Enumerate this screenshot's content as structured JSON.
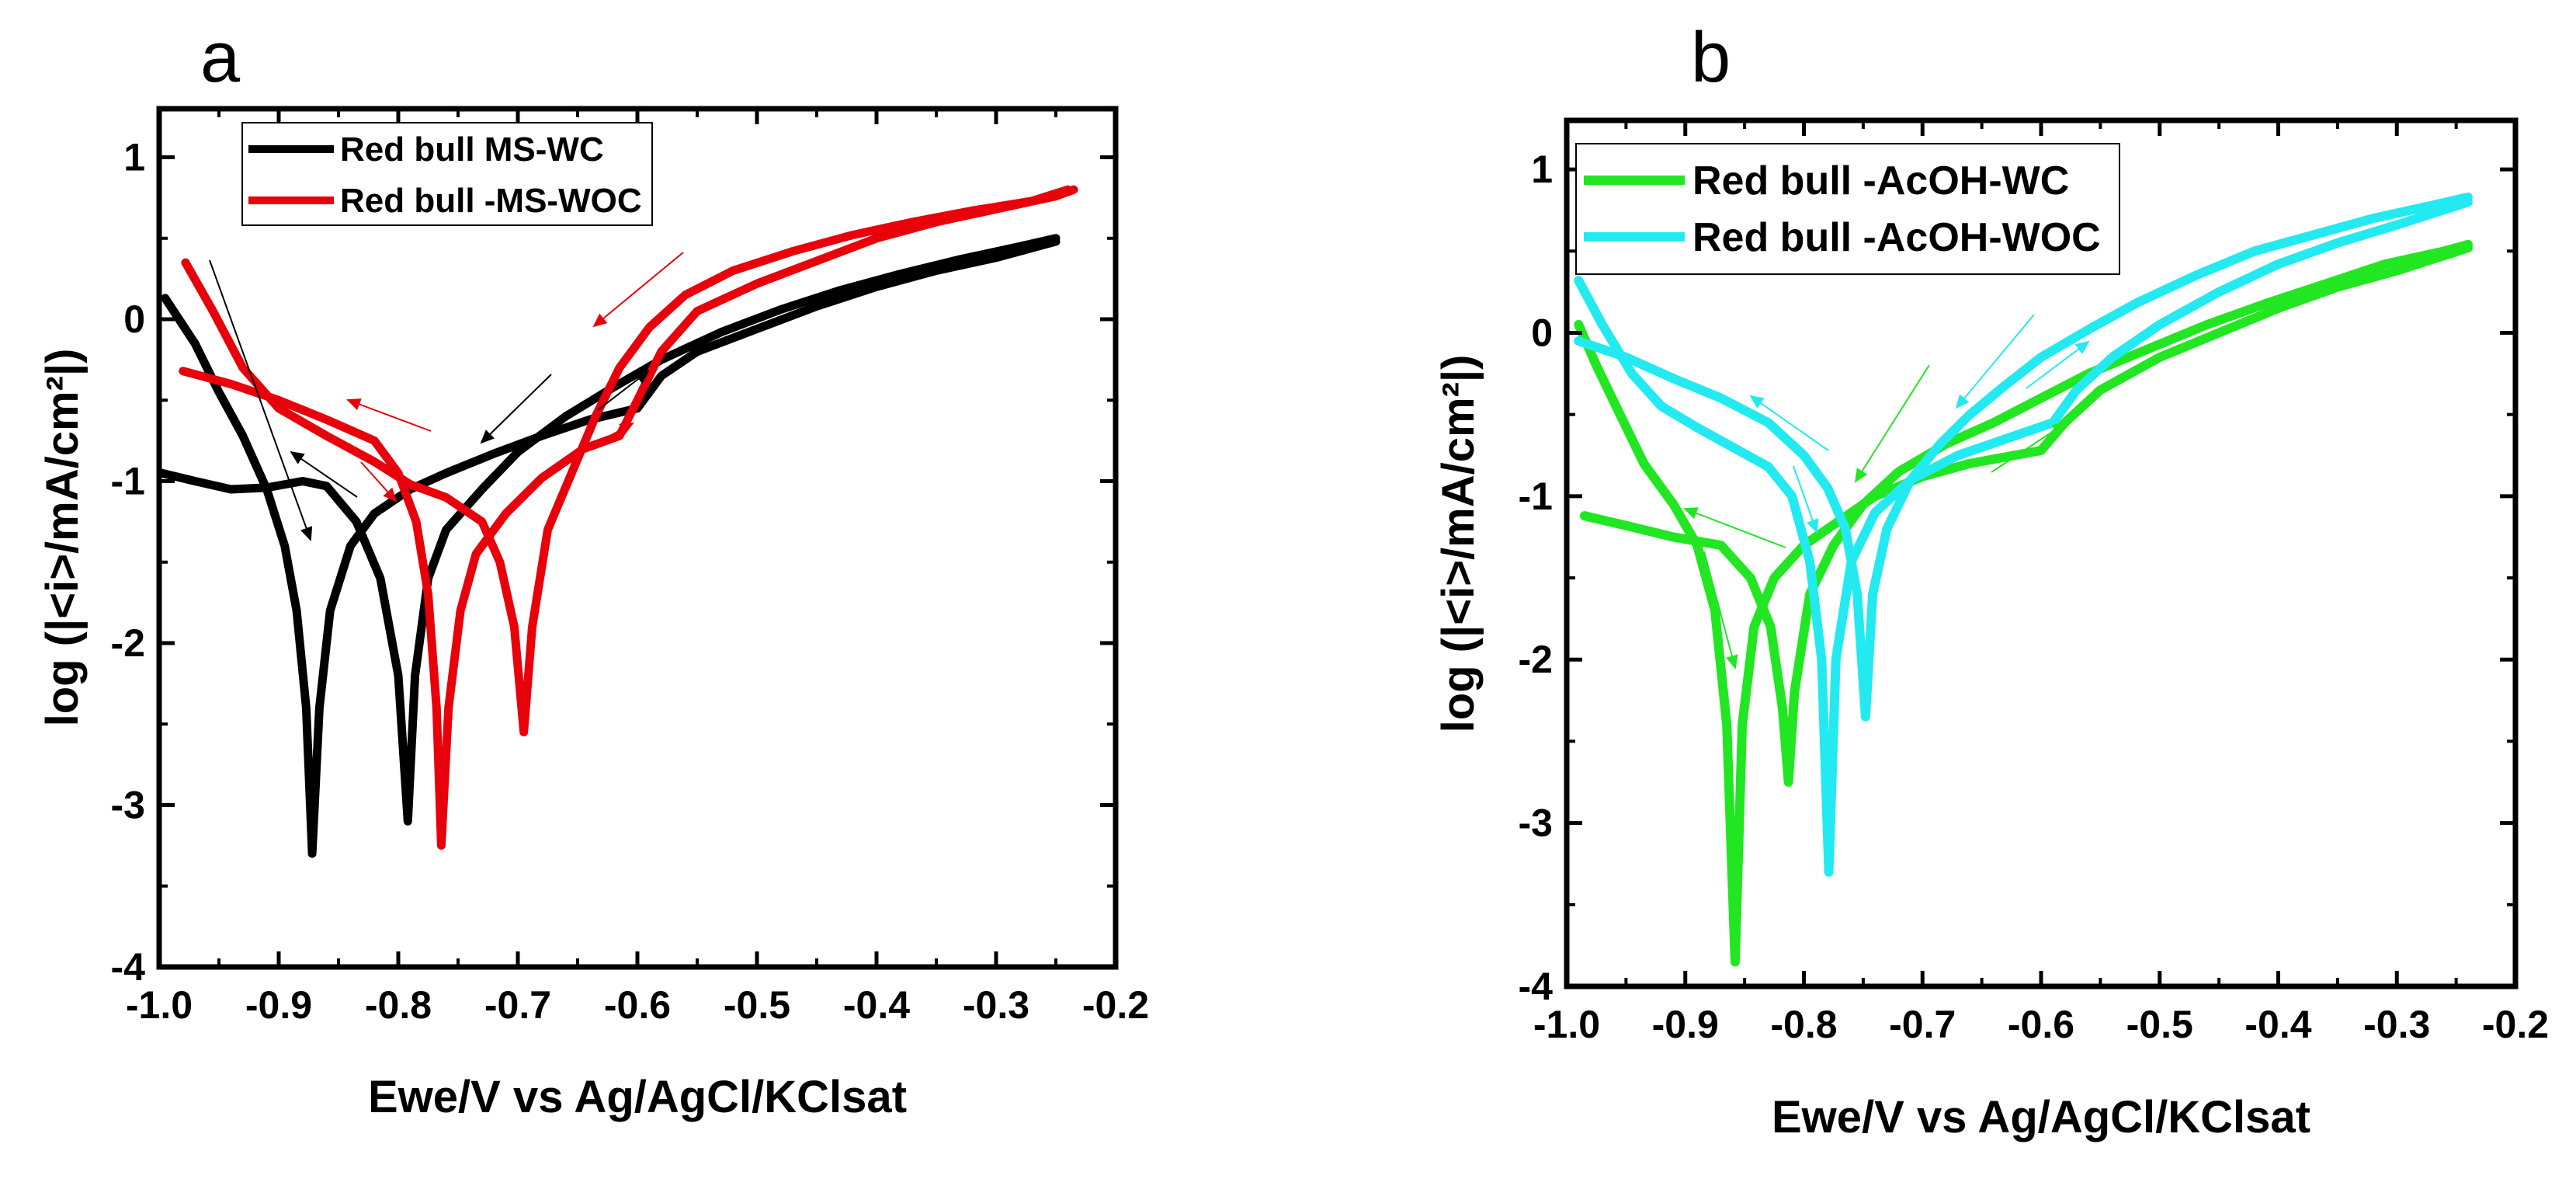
{
  "chart_data": [
    {
      "panel": "a",
      "type": "line",
      "xlabel": "Ewe/V vs Ag/AgCl/KClsat",
      "ylabel": "log (|<i>/mA/cm²|)",
      "xlim": [
        -1.0,
        -0.2
      ],
      "ylim": [
        -4,
        1.3
      ],
      "xticks": [
        -1.0,
        -0.9,
        -0.8,
        -0.7,
        -0.6,
        -0.5,
        -0.4,
        -0.3,
        -0.2
      ],
      "xtick_labels": [
        "-1.0",
        "-0.9",
        "-0.8",
        "-0.7",
        "-0.6",
        "-0.5",
        "-0.4",
        "-0.3",
        "-0.2"
      ],
      "yticks": [
        1,
        0,
        -1,
        -2,
        -3,
        -4
      ],
      "ytick_labels": [
        "1",
        "0",
        "-1",
        "-2",
        "-3",
        "-4"
      ],
      "legend": [
        "Red bull MS-WC",
        "Red bull -MS-WOC"
      ],
      "series": [
        {
          "name": "Red bull MS-WC",
          "color": "#000000",
          "curves": [
            [
              [
                -0.995,
                0.13
              ],
              [
                -0.97,
                -0.15
              ],
              [
                -0.95,
                -0.45
              ],
              [
                -0.93,
                -0.72
              ],
              [
                -0.91,
                -1.05
              ],
              [
                -0.895,
                -1.4
              ],
              [
                -0.885,
                -1.8
              ],
              [
                -0.877,
                -2.4
              ],
              [
                -0.872,
                -3.3
              ],
              [
                -0.866,
                -2.4
              ],
              [
                -0.857,
                -1.8
              ],
              [
                -0.84,
                -1.4
              ],
              [
                -0.82,
                -1.2
              ],
              [
                -0.79,
                -1.05
              ],
              [
                -0.76,
                -0.95
              ],
              [
                -0.72,
                -0.83
              ],
              [
                -0.68,
                -0.72
              ],
              [
                -0.64,
                -0.62
              ],
              [
                -0.6,
                -0.55
              ],
              [
                -0.58,
                -0.35
              ],
              [
                -0.55,
                -0.2
              ],
              [
                -0.5,
                -0.06
              ],
              [
                -0.45,
                0.08
              ],
              [
                -0.4,
                0.2
              ],
              [
                -0.35,
                0.3
              ],
              [
                -0.3,
                0.38
              ],
              [
                -0.25,
                0.48
              ]
            ],
            [
              [
                -0.998,
                -0.95
              ],
              [
                -0.97,
                -1.0
              ],
              [
                -0.94,
                -1.05
              ],
              [
                -0.91,
                -1.04
              ],
              [
                -0.88,
                -1.0
              ],
              [
                -0.86,
                -1.03
              ],
              [
                -0.835,
                -1.25
              ],
              [
                -0.815,
                -1.6
              ],
              [
                -0.8,
                -2.2
              ],
              [
                -0.792,
                -3.1
              ],
              [
                -0.786,
                -2.2
              ],
              [
                -0.775,
                -1.6
              ],
              [
                -0.76,
                -1.3
              ],
              [
                -0.73,
                -1.05
              ],
              [
                -0.7,
                -0.82
              ],
              [
                -0.66,
                -0.6
              ],
              [
                -0.62,
                -0.42
              ],
              [
                -0.58,
                -0.25
              ],
              [
                -0.53,
                -0.08
              ],
              [
                -0.48,
                0.06
              ],
              [
                -0.43,
                0.18
              ],
              [
                -0.38,
                0.28
              ],
              [
                -0.33,
                0.37
              ],
              [
                -0.28,
                0.45
              ],
              [
                -0.25,
                0.5
              ]
            ]
          ]
        },
        {
          "name": "Red bull -MS-WOC",
          "color": "#e8000b",
          "curves": [
            [
              [
                -0.98,
                -0.32
              ],
              [
                -0.94,
                -0.4
              ],
              [
                -0.9,
                -0.5
              ],
              [
                -0.86,
                -0.62
              ],
              [
                -0.82,
                -0.75
              ],
              [
                -0.8,
                -0.95
              ],
              [
                -0.785,
                -1.25
              ],
              [
                -0.775,
                -1.7
              ],
              [
                -0.768,
                -2.4
              ],
              [
                -0.764,
                -3.25
              ],
              [
                -0.758,
                -2.4
              ],
              [
                -0.748,
                -1.8
              ],
              [
                -0.735,
                -1.45
              ],
              [
                -0.71,
                -1.2
              ],
              [
                -0.68,
                -0.98
              ],
              [
                -0.645,
                -0.8
              ],
              [
                -0.615,
                -0.72
              ],
              [
                -0.6,
                -0.5
              ],
              [
                -0.58,
                -0.2
              ],
              [
                -0.55,
                0.05
              ],
              [
                -0.5,
                0.22
              ],
              [
                -0.45,
                0.36
              ],
              [
                -0.4,
                0.5
              ],
              [
                -0.35,
                0.6
              ],
              [
                -0.3,
                0.68
              ],
              [
                -0.25,
                0.76
              ],
              [
                -0.235,
                0.8
              ]
            ],
            [
              [
                -0.978,
                0.35
              ],
              [
                -0.955,
                0.05
              ],
              [
                -0.93,
                -0.3
              ],
              [
                -0.9,
                -0.55
              ],
              [
                -0.86,
                -0.72
              ],
              [
                -0.82,
                -0.88
              ],
              [
                -0.79,
                -1.02
              ],
              [
                -0.76,
                -1.1
              ],
              [
                -0.73,
                -1.25
              ],
              [
                -0.715,
                -1.5
              ],
              [
                -0.703,
                -1.9
              ],
              [
                -0.695,
                -2.55
              ],
              [
                -0.688,
                -1.9
              ],
              [
                -0.675,
                -1.3
              ],
              [
                -0.655,
                -0.95
              ],
              [
                -0.635,
                -0.6
              ],
              [
                -0.615,
                -0.3
              ],
              [
                -0.59,
                -0.05
              ],
              [
                -0.56,
                0.15
              ],
              [
                -0.52,
                0.3
              ],
              [
                -0.47,
                0.42
              ],
              [
                -0.42,
                0.52
              ],
              [
                -0.37,
                0.6
              ],
              [
                -0.32,
                0.67
              ],
              [
                -0.27,
                0.73
              ],
              [
                -0.24,
                0.8
              ]
            ]
          ]
        }
      ]
    },
    {
      "panel": "b",
      "type": "line",
      "xlabel": "Ewe/V vs Ag/AgCl/KClsat",
      "ylabel": "log (|<i>/mA/cm²|)",
      "xlim": [
        -1.0,
        -0.2
      ],
      "ylim": [
        -4,
        1.3
      ],
      "xticks": [
        -1.0,
        -0.9,
        -0.8,
        -0.7,
        -0.6,
        -0.5,
        -0.4,
        -0.3,
        -0.2
      ],
      "xtick_labels": [
        "-1.0",
        "-0.9",
        "-0.8",
        "-0.7",
        "-0.6",
        "-0.5",
        "-0.4",
        "-0.3",
        "-0.2"
      ],
      "yticks": [
        1,
        0,
        -1,
        -2,
        -3,
        -4
      ],
      "ytick_labels": [
        "1",
        "0",
        "-1",
        "-2",
        "-3",
        "-4"
      ],
      "legend": [
        "Red bull -AcOH-WC",
        "Red bull -AcOH-WOC"
      ],
      "series": [
        {
          "name": "Red bull -AcOH-WC",
          "color": "#22e622",
          "curves": [
            [
              [
                -0.99,
                0.05
              ],
              [
                -0.975,
                -0.2
              ],
              [
                -0.955,
                -0.5
              ],
              [
                -0.935,
                -0.8
              ],
              [
                -0.91,
                -1.05
              ],
              [
                -0.89,
                -1.3
              ],
              [
                -0.875,
                -1.7
              ],
              [
                -0.865,
                -2.4
              ],
              [
                -0.858,
                -3.85
              ],
              [
                -0.852,
                -2.4
              ],
              [
                -0.842,
                -1.8
              ],
              [
                -0.825,
                -1.5
              ],
              [
                -0.8,
                -1.3
              ],
              [
                -0.77,
                -1.15
              ],
              [
                -0.74,
                -1.0
              ],
              [
                -0.7,
                -0.88
              ],
              [
                -0.66,
                -0.8
              ],
              [
                -0.6,
                -0.72
              ],
              [
                -0.58,
                -0.55
              ],
              [
                -0.55,
                -0.35
              ],
              [
                -0.5,
                -0.15
              ],
              [
                -0.45,
                0.0
              ],
              [
                -0.4,
                0.15
              ],
              [
                -0.35,
                0.28
              ],
              [
                -0.3,
                0.38
              ],
              [
                -0.24,
                0.52
              ]
            ],
            [
              [
                -0.985,
                -1.12
              ],
              [
                -0.95,
                -1.18
              ],
              [
                -0.91,
                -1.25
              ],
              [
                -0.87,
                -1.3
              ],
              [
                -0.845,
                -1.5
              ],
              [
                -0.828,
                -1.8
              ],
              [
                -0.818,
                -2.3
              ],
              [
                -0.813,
                -2.75
              ],
              [
                -0.808,
                -2.2
              ],
              [
                -0.795,
                -1.6
              ],
              [
                -0.775,
                -1.3
              ],
              [
                -0.75,
                -1.05
              ],
              [
                -0.72,
                -0.85
              ],
              [
                -0.68,
                -0.68
              ],
              [
                -0.64,
                -0.55
              ],
              [
                -0.6,
                -0.4
              ],
              [
                -0.56,
                -0.25
              ],
              [
                -0.51,
                -0.1
              ],
              [
                -0.46,
                0.05
              ],
              [
                -0.41,
                0.18
              ],
              [
                -0.36,
                0.3
              ],
              [
                -0.31,
                0.42
              ],
              [
                -0.26,
                0.5
              ],
              [
                -0.24,
                0.54
              ]
            ]
          ]
        },
        {
          "name": "Red bull -AcOH-WOC",
          "color": "#22eaf0",
          "curves": [
            [
              [
                -0.99,
                0.32
              ],
              [
                -0.97,
                0.05
              ],
              [
                -0.945,
                -0.25
              ],
              [
                -0.92,
                -0.45
              ],
              [
                -0.89,
                -0.58
              ],
              [
                -0.86,
                -0.7
              ],
              [
                -0.83,
                -0.82
              ],
              [
                -0.81,
                -1.0
              ],
              [
                -0.795,
                -1.4
              ],
              [
                -0.785,
                -2.0
              ],
              [
                -0.779,
                -3.3
              ],
              [
                -0.773,
                -2.0
              ],
              [
                -0.76,
                -1.4
              ],
              [
                -0.74,
                -1.1
              ],
              [
                -0.71,
                -0.9
              ],
              [
                -0.67,
                -0.75
              ],
              [
                -0.63,
                -0.65
              ],
              [
                -0.59,
                -0.55
              ],
              [
                -0.57,
                -0.35
              ],
              [
                -0.54,
                -0.15
              ],
              [
                -0.5,
                0.05
              ],
              [
                -0.45,
                0.25
              ],
              [
                -0.4,
                0.42
              ],
              [
                -0.35,
                0.55
              ],
              [
                -0.3,
                0.66
              ],
              [
                -0.24,
                0.8
              ]
            ],
            [
              [
                -0.99,
                -0.05
              ],
              [
                -0.95,
                -0.15
              ],
              [
                -0.91,
                -0.28
              ],
              [
                -0.87,
                -0.4
              ],
              [
                -0.83,
                -0.55
              ],
              [
                -0.8,
                -0.75
              ],
              [
                -0.78,
                -0.95
              ],
              [
                -0.765,
                -1.2
              ],
              [
                -0.755,
                -1.6
              ],
              [
                -0.748,
                -2.35
              ],
              [
                -0.742,
                -1.6
              ],
              [
                -0.73,
                -1.2
              ],
              [
                -0.71,
                -0.9
              ],
              [
                -0.685,
                -0.68
              ],
              [
                -0.66,
                -0.5
              ],
              [
                -0.63,
                -0.32
              ],
              [
                -0.6,
                -0.15
              ],
              [
                -0.56,
                0.02
              ],
              [
                -0.52,
                0.18
              ],
              [
                -0.47,
                0.35
              ],
              [
                -0.42,
                0.5
              ],
              [
                -0.37,
                0.6
              ],
              [
                -0.32,
                0.7
              ],
              [
                -0.27,
                0.78
              ],
              [
                -0.24,
                0.83
              ]
            ]
          ]
        }
      ]
    }
  ]
}
